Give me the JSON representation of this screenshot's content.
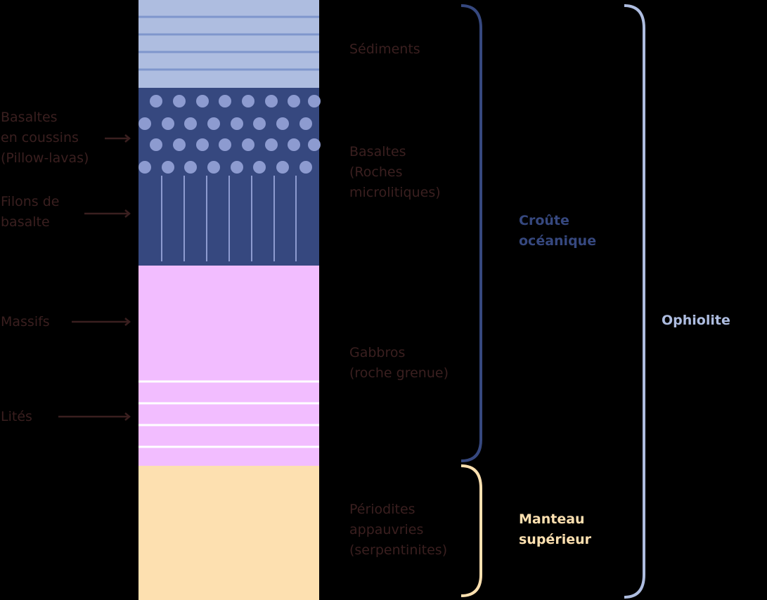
{
  "colors": {
    "background": "#000000",
    "sediments": "#aebde0",
    "sediments_line": "#7f96cc",
    "basalt": "#36487f",
    "basalt_dots": "#8d9bd0",
    "gabbro": "#f2bdff",
    "gabbro_line": "#ffffff",
    "peridotite": "#fde0b0",
    "label_text": "#3a1f1f",
    "crust": "#36487f",
    "mantle": "#fde0b0",
    "ophiolite": "#aebde0"
  },
  "left_labels": {
    "pillow": "Basaltes\nen coussins\n(Pillow-lavas)",
    "dykes": "Filons de\nbasalte",
    "massive": "Massifs",
    "layered": "Lités"
  },
  "layer_labels": {
    "sediments": "Sédiments",
    "basalts": "Basaltes\n(Roches\nmicrolitiques)",
    "gabbros": "Gabbros\n(roche grenue)",
    "peridotites": "Périodites\nappauvries\n(serpentinites)"
  },
  "group_labels": {
    "crust": "Croûte\nocéanique",
    "mantle": "Manteau\nsupérieur",
    "ophiolite": "Ophiolite"
  }
}
